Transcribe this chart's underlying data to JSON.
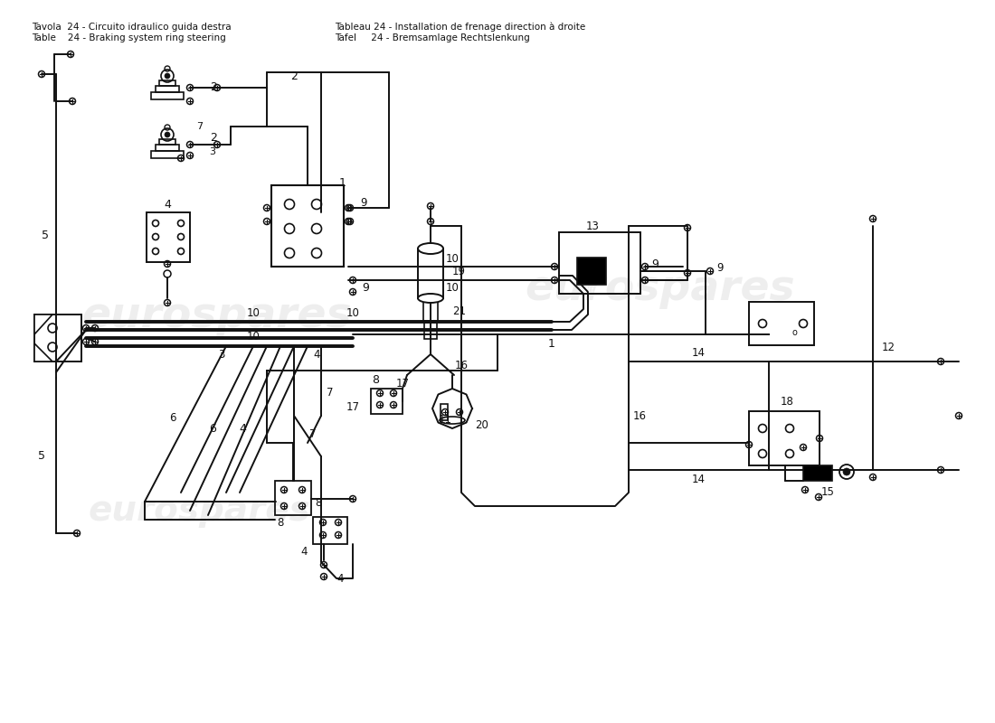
{
  "title_left_1": "Tavola  24 - Circuito idraulico guida destra",
  "title_left_2": "Table    24 - Braking system ring steering",
  "title_right_1": "Tableau 24 - Installation de frenage direction à droite",
  "title_right_2": "Tafel     24 - Bremsamlage Rechtslenkung",
  "bg_color": "#ffffff",
  "line_color": "#111111",
  "watermark_color": "#cccccc",
  "watermark_alpha": 0.32
}
